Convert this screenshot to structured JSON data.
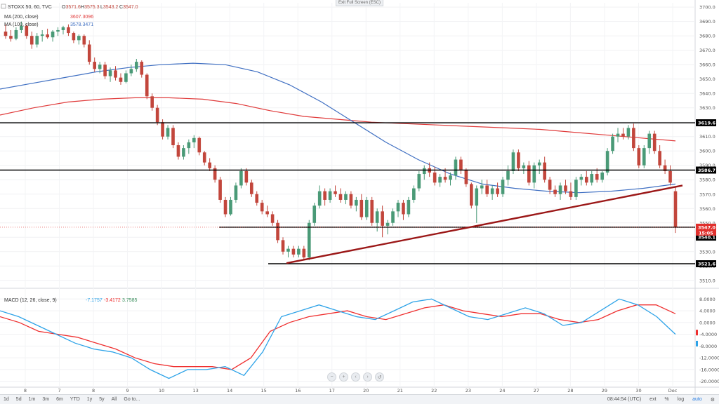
{
  "header": {
    "symbol": "STOXX 50, 60, TVC",
    "o_label": "O",
    "o_value": "3571.6",
    "h_label": "H",
    "h_value": "3575.3",
    "l_label": "L",
    "l_value": "3543.2",
    "c_label": "C",
    "c_value": "3547.0",
    "ma200_label": "MA (200, close)",
    "ma200_value": "3607.3096",
    "ma100_label": "MA (100, close)",
    "ma100_value": "3578.3471",
    "macd_label": "MACD (12, 26, close, 9)",
    "macd_v1": "-7.1757",
    "macd_v2": "-3.4172",
    "macd_v3": "3.7585"
  },
  "exit_fullscreen": "Exit Full Screen (ESC)",
  "colors": {
    "up": "#4a9a77",
    "down": "#c2463c",
    "ma200": "#e03b3b",
    "ma100": "#3f6fc2",
    "macd": "#2ea3e8",
    "signal": "#ef2f2f",
    "trend": "#9b1717",
    "level": "#000000",
    "tag": "#000000",
    "price_tag": "#e0302d"
  },
  "price_levels": [
    "3619.6",
    "3586.7",
    "3547.0",
    "3540.1",
    "3521.6"
  ],
  "countdown": "15:05",
  "bottom_bar": {
    "timeframes": [
      "1d",
      "5d",
      "1m",
      "3m",
      "6m",
      "YTD",
      "1y",
      "5y",
      "All",
      "Go to..."
    ],
    "time": "08:44:54 (UTC)",
    "options": [
      "ext",
      "%",
      "log",
      "auto"
    ],
    "gear": "⚙"
  },
  "nav_controls": [
    "−",
    "+",
    "‹",
    "›",
    "↺"
  ],
  "chart_data": {
    "type": "candlestick",
    "price_axis": {
      "ticks": [
        "3700.0",
        "3690.0",
        "3680.0",
        "3670.0",
        "3660.0",
        "3650.0",
        "3640.0",
        "3630.0",
        "3620.0",
        "3610.0",
        "3600.0",
        "3590.0",
        "3580.0",
        "3570.0",
        "3560.0",
        "3550.0",
        "3540.0",
        "3530.0",
        "3520.0",
        "3510.0"
      ],
      "range": [
        3506,
        3703
      ]
    },
    "macd_axis": {
      "ticks": [
        "8.0000",
        "4.0000",
        "0.0000",
        "-4.0000",
        "-8.0000",
        "-12.0000",
        "-16.0000",
        "-20.0000"
      ],
      "range": [
        -21.5,
        9.5
      ]
    },
    "x_labels": [
      "8",
      "7",
      "8",
      "9",
      "10",
      "13",
      "14",
      "15",
      "16",
      "17",
      "20",
      "21",
      "22",
      "23",
      "24",
      "27",
      "28",
      "29",
      "30",
      "Dec"
    ],
    "candles": [
      [
        3683,
        3688,
        3678,
        3680
      ],
      [
        3680,
        3684,
        3676,
        3678
      ],
      [
        3678,
        3686,
        3677,
        3684
      ],
      [
        3684,
        3690,
        3682,
        3687
      ],
      [
        3687,
        3688,
        3678,
        3680
      ],
      [
        3680,
        3683,
        3671,
        3674
      ],
      [
        3674,
        3682,
        3672,
        3680
      ],
      [
        3680,
        3684,
        3676,
        3681
      ],
      [
        3681,
        3685,
        3678,
        3679
      ],
      [
        3679,
        3684,
        3676,
        3683
      ],
      [
        3683,
        3686,
        3680,
        3684
      ],
      [
        3684,
        3687,
        3681,
        3686
      ],
      [
        3686,
        3688,
        3680,
        3682
      ],
      [
        3682,
        3683,
        3675,
        3677
      ],
      [
        3677,
        3681,
        3674,
        3680
      ],
      [
        3680,
        3681,
        3672,
        3674
      ],
      [
        3674,
        3677,
        3660,
        3662
      ],
      [
        3662,
        3665,
        3655,
        3657
      ],
      [
        3657,
        3662,
        3654,
        3660
      ],
      [
        3660,
        3662,
        3650,
        3652
      ],
      [
        3652,
        3658,
        3648,
        3656
      ],
      [
        3656,
        3659,
        3649,
        3651
      ],
      [
        3651,
        3654,
        3646,
        3648
      ],
      [
        3648,
        3656,
        3647,
        3654
      ],
      [
        3654,
        3660,
        3652,
        3657
      ],
      [
        3657,
        3664,
        3655,
        3662
      ],
      [
        3662,
        3663,
        3651,
        3653
      ],
      [
        3653,
        3654,
        3636,
        3638
      ],
      [
        3638,
        3640,
        3628,
        3630
      ],
      [
        3630,
        3632,
        3618,
        3620
      ],
      [
        3620,
        3622,
        3608,
        3610
      ],
      [
        3610,
        3618,
        3608,
        3616
      ],
      [
        3616,
        3618,
        3602,
        3604
      ],
      [
        3604,
        3606,
        3594,
        3596
      ],
      [
        3596,
        3604,
        3594,
        3602
      ],
      [
        3602,
        3608,
        3598,
        3606
      ],
      [
        3606,
        3611,
        3602,
        3609
      ],
      [
        3609,
        3610,
        3597,
        3599
      ],
      [
        3599,
        3600,
        3590,
        3592
      ],
      [
        3592,
        3595,
        3586,
        3588
      ],
      [
        3588,
        3590,
        3578,
        3580
      ],
      [
        3580,
        3582,
        3564,
        3566
      ],
      [
        3566,
        3568,
        3554,
        3556
      ],
      [
        3556,
        3568,
        3555,
        3566
      ],
      [
        3566,
        3578,
        3564,
        3576
      ],
      [
        3576,
        3588,
        3574,
        3586
      ],
      [
        3586,
        3588,
        3576,
        3578
      ],
      [
        3578,
        3580,
        3568,
        3570
      ],
      [
        3570,
        3572,
        3562,
        3564
      ],
      [
        3564,
        3566,
        3556,
        3558
      ],
      [
        3558,
        3562,
        3554,
        3556
      ],
      [
        3556,
        3558,
        3548,
        3550
      ],
      [
        3550,
        3552,
        3536,
        3538
      ],
      [
        3538,
        3540,
        3528,
        3530
      ],
      [
        3530,
        3534,
        3526,
        3532
      ],
      [
        3532,
        3534,
        3526,
        3528
      ],
      [
        3528,
        3534,
        3526,
        3532
      ],
      [
        3532,
        3534,
        3524,
        3526
      ],
      [
        3526,
        3552,
        3524,
        3550
      ],
      [
        3550,
        3564,
        3548,
        3562
      ],
      [
        3562,
        3576,
        3560,
        3572
      ],
      [
        3572,
        3574,
        3562,
        3566
      ],
      [
        3566,
        3574,
        3564,
        3572
      ],
      [
        3572,
        3576,
        3568,
        3570
      ],
      [
        3570,
        3574,
        3564,
        3566
      ],
      [
        3566,
        3572,
        3563,
        3570
      ],
      [
        3570,
        3572,
        3560,
        3562
      ],
      [
        3562,
        3568,
        3558,
        3566
      ],
      [
        3566,
        3570,
        3552,
        3554
      ],
      [
        3554,
        3568,
        3552,
        3566
      ],
      [
        3566,
        3568,
        3548,
        3550
      ],
      [
        3550,
        3560,
        3544,
        3558
      ],
      [
        3558,
        3562,
        3540,
        3548
      ],
      [
        3548,
        3552,
        3542,
        3550
      ],
      [
        3550,
        3560,
        3548,
        3558
      ],
      [
        3558,
        3566,
        3554,
        3564
      ],
      [
        3564,
        3566,
        3552,
        3556
      ],
      [
        3556,
        3568,
        3554,
        3566
      ],
      [
        3566,
        3576,
        3564,
        3574
      ],
      [
        3574,
        3586,
        3572,
        3584
      ],
      [
        3584,
        3590,
        3580,
        3588
      ],
      [
        3588,
        3592,
        3582,
        3585
      ],
      [
        3585,
        3589,
        3576,
        3578
      ],
      [
        3578,
        3584,
        3575,
        3582
      ],
      [
        3582,
        3588,
        3578,
        3580
      ],
      [
        3580,
        3585,
        3576,
        3583
      ],
      [
        3583,
        3596,
        3580,
        3594
      ],
      [
        3594,
        3596,
        3584,
        3587
      ],
      [
        3587,
        3588,
        3575,
        3577
      ],
      [
        3577,
        3578,
        3560,
        3562
      ],
      [
        3562,
        3576,
        3550,
        3574
      ],
      [
        3574,
        3580,
        3570,
        3576
      ],
      [
        3576,
        3580,
        3568,
        3570
      ],
      [
        3570,
        3576,
        3566,
        3574
      ],
      [
        3574,
        3578,
        3568,
        3570
      ],
      [
        3570,
        3582,
        3568,
        3580
      ],
      [
        3580,
        3590,
        3576,
        3586
      ],
      [
        3586,
        3601,
        3584,
        3599
      ],
      [
        3599,
        3601,
        3586,
        3588
      ],
      [
        3588,
        3592,
        3584,
        3590
      ],
      [
        3590,
        3593,
        3576,
        3578
      ],
      [
        3578,
        3592,
        3574,
        3590
      ],
      [
        3590,
        3594,
        3584,
        3592
      ],
      [
        3592,
        3596,
        3578,
        3580
      ],
      [
        3580,
        3582,
        3570,
        3573
      ],
      [
        3573,
        3576,
        3568,
        3570
      ],
      [
        3570,
        3578,
        3566,
        3576
      ],
      [
        3576,
        3580,
        3570,
        3572
      ],
      [
        3572,
        3578,
        3566,
        3568
      ],
      [
        3568,
        3582,
        3566,
        3580
      ],
      [
        3580,
        3584,
        3576,
        3582
      ],
      [
        3582,
        3586,
        3576,
        3578
      ],
      [
        3578,
        3586,
        3576,
        3584
      ],
      [
        3584,
        3588,
        3578,
        3580
      ],
      [
        3580,
        3586,
        3578,
        3585
      ],
      [
        3585,
        3602,
        3583,
        3600
      ],
      [
        3600,
        3612,
        3598,
        3610
      ],
      [
        3610,
        3616,
        3606,
        3612
      ],
      [
        3612,
        3616,
        3608,
        3610
      ],
      [
        3610,
        3618,
        3608,
        3616
      ],
      [
        3616,
        3619,
        3600,
        3602
      ],
      [
        3602,
        3604,
        3588,
        3590
      ],
      [
        3590,
        3604,
        3588,
        3602
      ],
      [
        3602,
        3614,
        3598,
        3612
      ],
      [
        3612,
        3614,
        3598,
        3600
      ],
      [
        3600,
        3604,
        3588,
        3590
      ],
      [
        3590,
        3594,
        3584,
        3586
      ],
      [
        3586,
        3590,
        3576,
        3578
      ],
      [
        3572,
        3575,
        3543,
        3547
      ]
    ],
    "ma100": [
      3643,
      3647,
      3651,
      3655,
      3658,
      3660,
      3661,
      3660,
      3655,
      3646,
      3634,
      3620,
      3606,
      3594,
      3584,
      3577,
      3574,
      3572,
      3571,
      3572,
      3574,
      3577
    ],
    "ma200": [
      3625,
      3630,
      3634,
      3636,
      3637,
      3637,
      3636,
      3633,
      3628,
      3624,
      3622,
      3620,
      3619,
      3618,
      3617,
      3616,
      3615,
      3613,
      3611,
      3609,
      3607
    ],
    "macd": [
      4,
      2,
      -1,
      -4,
      -7,
      -9,
      -10,
      -12,
      -16,
      -19,
      -16,
      -16,
      -15,
      -18,
      -10,
      2,
      4,
      6,
      4,
      2,
      1,
      4,
      7,
      8,
      5,
      2,
      1,
      3,
      5,
      3,
      -1,
      0,
      4,
      8,
      6,
      2,
      -4
    ],
    "signal": [
      2,
      0,
      -3,
      -4,
      -5,
      -7,
      -9,
      -12,
      -14,
      -15,
      -15,
      -15,
      -16,
      -12,
      -3,
      0,
      2,
      3,
      4,
      2,
      1,
      3,
      5,
      6,
      4,
      3,
      2,
      3,
      3,
      1,
      0,
      1,
      4,
      6,
      6,
      3
    ],
    "trendline": [
      [
        3522,
        0.0
      ],
      [
        3576,
        1.0
      ]
    ]
  }
}
